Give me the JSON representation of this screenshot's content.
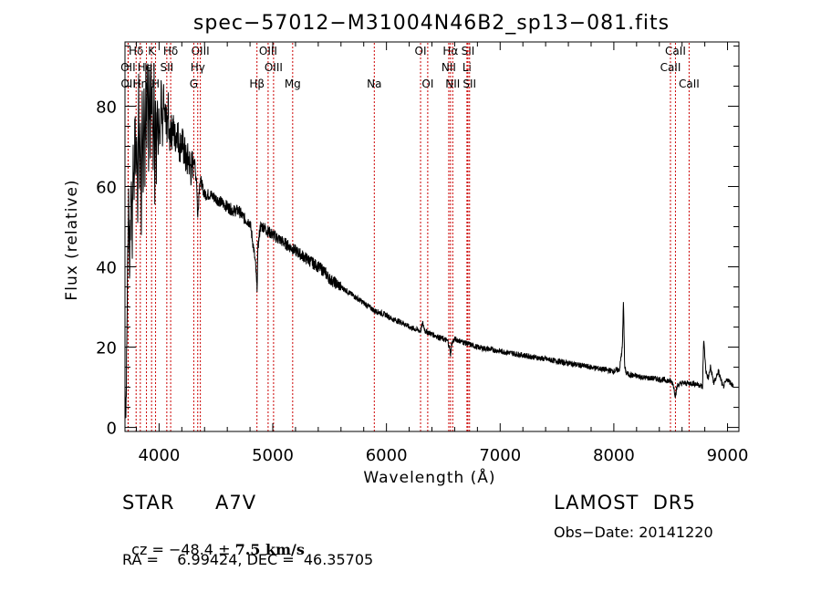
{
  "chart_data": {
    "type": "line",
    "title": "spec−57012−M31004N46B2_sp13−081.fits",
    "xlabel": "Wavelength (Å)",
    "ylabel": "Flux (relative)",
    "xlim": [
      3700,
      9100
    ],
    "ylim": [
      -1,
      96
    ],
    "xticks": [
      4000,
      5000,
      6000,
      7000,
      8000,
      9000
    ],
    "yticks": [
      0,
      20,
      40,
      60,
      80
    ],
    "grid": false,
    "line_color": "#000000",
    "marker_color": "#cc0000",
    "lines": [
      {
        "label": "Hδ",
        "x": 3798,
        "row": 0
      },
      {
        "label": "K",
        "x": 3934,
        "row": 0
      },
      {
        "label": "Hδ",
        "x": 4102,
        "row": 0
      },
      {
        "label": "OIII",
        "x": 4363,
        "row": 0
      },
      {
        "label": "OIII",
        "x": 4959,
        "row": 0
      },
      {
        "label": "OI",
        "x": 6300,
        "row": 0
      },
      {
        "label": "Hα",
        "x": 6563,
        "row": 0
      },
      {
        "label": "SII",
        "x": 6717,
        "row": 0
      },
      {
        "label": "CaII",
        "x": 8542,
        "row": 0
      },
      {
        "label": "OII",
        "x": 3727,
        "row": 1
      },
      {
        "label": "HeI",
        "x": 3889,
        "row": 1
      },
      {
        "label": "SII",
        "x": 4068,
        "row": 1
      },
      {
        "label": "Hγ",
        "x": 4340,
        "row": 1
      },
      {
        "label": "OIII",
        "x": 5007,
        "row": 1
      },
      {
        "label": "NII",
        "x": 6548,
        "row": 1
      },
      {
        "label": "Li",
        "x": 6708,
        "row": 1
      },
      {
        "label": "CaII",
        "x": 8498,
        "row": 1
      },
      {
        "label": "OII",
        "x": 3729,
        "row": 2
      },
      {
        "label": "Hη",
        "x": 3835,
        "row": 2
      },
      {
        "label": "H",
        "x": 3969,
        "row": 2
      },
      {
        "label": "G",
        "x": 4305,
        "row": 2
      },
      {
        "label": "Hβ",
        "x": 4861,
        "row": 2
      },
      {
        "label": "Mg",
        "x": 5175,
        "row": 2
      },
      {
        "label": "Na",
        "x": 5893,
        "row": 2
      },
      {
        "label": "OI",
        "x": 6363,
        "row": 2
      },
      {
        "label": "NII",
        "x": 6583,
        "row": 2
      },
      {
        "label": "SII",
        "x": 6731,
        "row": 2
      },
      {
        "label": "CaII",
        "x": 8662,
        "row": 2
      }
    ],
    "spectrum_x": [
      3700,
      3708,
      3716,
      3724,
      3732,
      3740,
      3748,
      3756,
      3764,
      3772,
      3780,
      3788,
      3796,
      3804,
      3812,
      3820,
      3828,
      3836,
      3844,
      3852,
      3860,
      3868,
      3876,
      3884,
      3892,
      3900,
      3908,
      3916,
      3924,
      3930,
      3934,
      3940,
      3948,
      3956,
      3962,
      3969,
      3976,
      3984,
      3992,
      4000,
      4010,
      4020,
      4030,
      4040,
      4050,
      4060,
      4070,
      4080,
      4090,
      4102,
      4110,
      4120,
      4140,
      4160,
      4180,
      4200,
      4220,
      4240,
      4260,
      4280,
      4300,
      4310,
      4320,
      4330,
      4340,
      4350,
      4360,
      4380,
      4400,
      4450,
      4500,
      4550,
      4600,
      4650,
      4700,
      4750,
      4800,
      4830,
      4850,
      4861,
      4870,
      4890,
      4920,
      4950,
      5000,
      5050,
      5100,
      5150,
      5200,
      5250,
      5300,
      5350,
      5400,
      5450,
      5500,
      5550,
      5600,
      5650,
      5700,
      5750,
      5800,
      5850,
      5900,
      5950,
      6000,
      6050,
      6100,
      6150,
      6200,
      6250,
      6300,
      6320,
      6340,
      6380,
      6420,
      6460,
      6500,
      6540,
      6560,
      6563,
      6575,
      6600,
      6650,
      6700,
      6750,
      6800,
      6900,
      7000,
      7100,
      7200,
      7300,
      7400,
      7500,
      7600,
      7700,
      7800,
      7900,
      8000,
      8050,
      8075,
      8085,
      8095,
      8110,
      8150,
      8200,
      8250,
      8300,
      8350,
      8400,
      8450,
      8500,
      8520,
      8540,
      8560,
      8600,
      8660,
      8700,
      8760,
      8780,
      8790,
      8810,
      8830,
      8850,
      8880,
      8920,
      8960,
      9000,
      9030,
      9050
    ],
    "spectrum_y": [
      10,
      3,
      20,
      44,
      58,
      40,
      50,
      62,
      45,
      70,
      58,
      78,
      62,
      74,
      55,
      84,
      60,
      78,
      50,
      80,
      58,
      87,
      62,
      90,
      70,
      94,
      68,
      88,
      70,
      95,
      75,
      85,
      68,
      88,
      60,
      86,
      65,
      80,
      70,
      78,
      74,
      85,
      70,
      82,
      75,
      78,
      72,
      80,
      70,
      76,
      73,
      75,
      72,
      74,
      70,
      71,
      69,
      66,
      67,
      64,
      66,
      67,
      63,
      62,
      52,
      58,
      62,
      60,
      58,
      58,
      57,
      56,
      55,
      54,
      54,
      52,
      51,
      45,
      40,
      34,
      45,
      50,
      50,
      49,
      48,
      47,
      46,
      45,
      44,
      43,
      42,
      41,
      40,
      39,
      37,
      36,
      35,
      34,
      33,
      32,
      31,
      30,
      29,
      28.5,
      28,
      27,
      26.5,
      26,
      25,
      24.5,
      24,
      26,
      24,
      23.5,
      23,
      22.5,
      22,
      21.5,
      19,
      18,
      21,
      22,
      21.5,
      21,
      20.5,
      20,
      19.5,
      19,
      18.5,
      18,
      17.5,
      17,
      16.5,
      16,
      15.5,
      15,
      14.5,
      14,
      14.5,
      20,
      32,
      15,
      13.5,
      13,
      12.8,
      12.5,
      12.3,
      12.2,
      12,
      11.8,
      11.5,
      11,
      8,
      10.5,
      11,
      11,
      11,
      10.5,
      10,
      22,
      14,
      12,
      15,
      11,
      14,
      10,
      12,
      11,
      10.5,
      10,
      9
    ]
  },
  "info": {
    "class_label": "STAR",
    "subclass": "A7V",
    "survey": "LAMOST  DR5",
    "cz_label": "cz = ",
    "cz_value": "−48.4",
    "pm_sign": " ± ",
    "cz_error": "7.5",
    "cz_unit": " km/s",
    "obs_date": "Obs−Date: 20141220",
    "coords": "RA =    6.99424, DEC =  46.35705"
  }
}
